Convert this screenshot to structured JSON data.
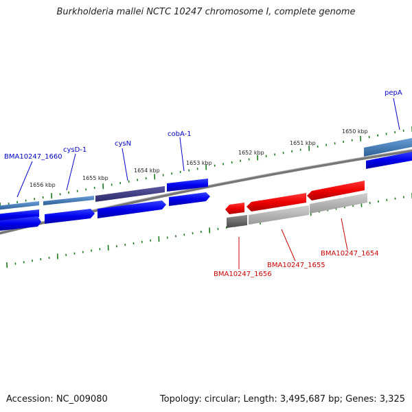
{
  "title": "Burkholderia mallei NCTC 10247 chromosome I, complete genome",
  "accession": "Accession: NC_009080",
  "summary": "Topology: circular; Length: 3,495,687 bp; Genes: 3,325",
  "colors": {
    "forward_label": "#0000cc",
    "reverse_label": "#cc0000",
    "tick": "#1a7a1a",
    "backbone": "#777777"
  },
  "scale_labels": [
    "1656 kbp",
    "1655 kbp",
    "1654 kbp",
    "1653 kbp",
    "1652 kbp",
    "1651 kbp",
    "1650 kbp"
  ],
  "forward_genes": [
    "BMA10247_1660",
    "cysD-1",
    "cysN",
    "cobA-1",
    "pepA"
  ],
  "reverse_genes": [
    "BMA10247_1656",
    "BMA10247_1655",
    "BMA10247_1654"
  ]
}
